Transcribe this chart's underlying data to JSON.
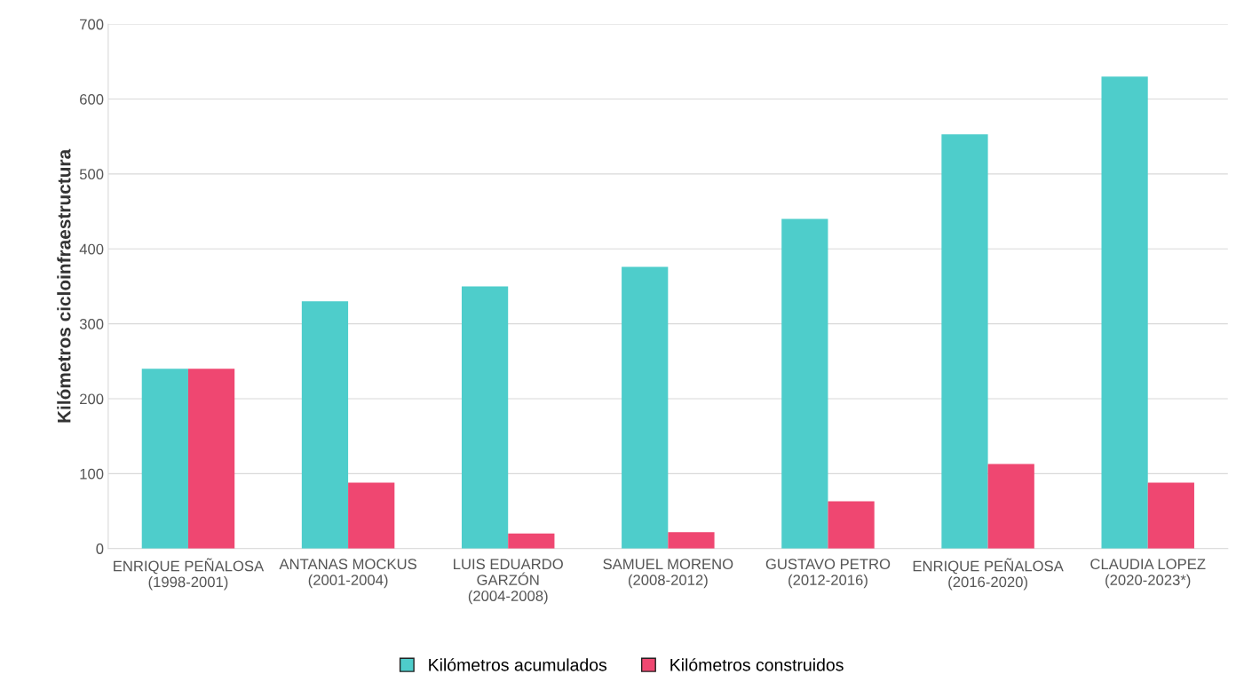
{
  "chart_data": {
    "type": "bar",
    "ylabel": "Kilómetros cicloinfraestructura",
    "categories": [
      "ENRIQUE PEÑALOSA (1998-2001)",
      "ANTANAS MOCKUS (2001-2004)",
      "LUIS EDUARDO GARZÓN (2004-2008)",
      "SAMUEL MORENO (2008-2012)",
      "GUSTAVO PETRO (2012-2016)",
      "ENRIQUE PEÑALOSA (2016-2020)",
      "CLAUDIA LOPEZ (2020-2023*)"
    ],
    "series": [
      {
        "name": "Kilómetros acumulados",
        "color": "#4ecdcb",
        "values": [
          240,
          330,
          350,
          376,
          440,
          553,
          630
        ]
      },
      {
        "name": "Kilómetros construidos",
        "color": "#ef4771",
        "values": [
          240,
          88,
          20,
          22,
          63,
          113,
          88
        ]
      }
    ],
    "ylim": [
      0,
      700
    ],
    "yticks": [
      0,
      100,
      200,
      300,
      400,
      500,
      600,
      700
    ],
    "grid": "y",
    "legend": "bottom"
  }
}
